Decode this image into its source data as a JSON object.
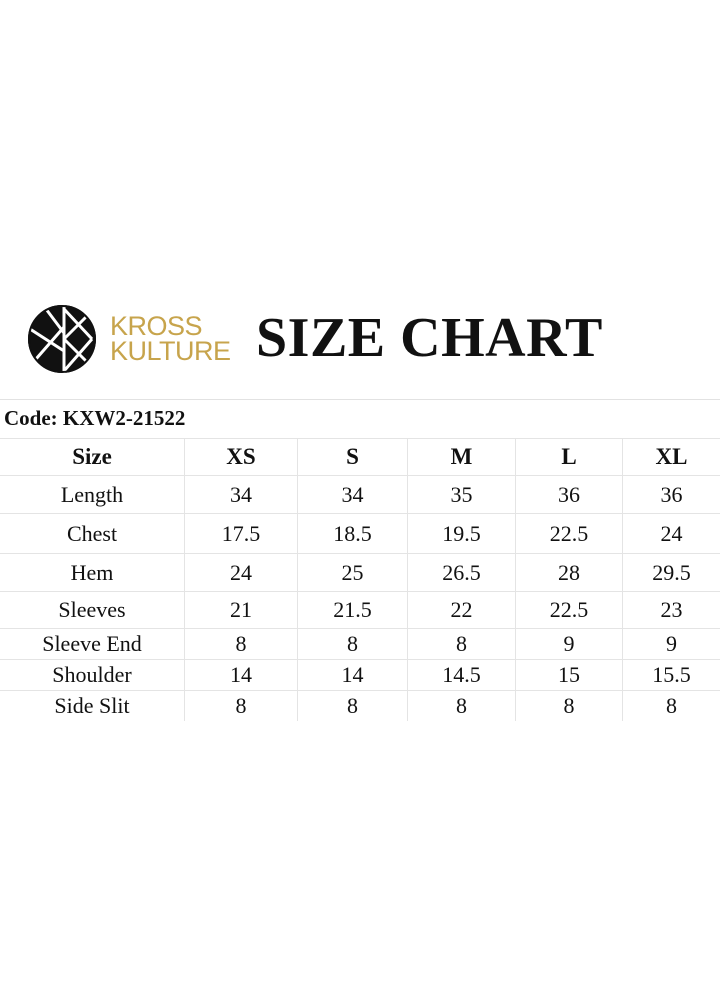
{
  "brand": {
    "line1": "KROSS",
    "line2": "KULTURE",
    "accent": "#c7a44c",
    "icon": "kross-kulture-logo-icon"
  },
  "title": "SIZE CHART",
  "code": "Code: KXW2-21522",
  "table": {
    "headers": [
      "Size",
      "XS",
      "S",
      "M",
      "L",
      "XL"
    ],
    "rows": [
      {
        "label": "Length",
        "values": [
          "34",
          "34",
          "35",
          "36",
          "36"
        ]
      },
      {
        "label": "Chest",
        "values": [
          "17.5",
          "18.5",
          "19.5",
          "22.5",
          "24"
        ]
      },
      {
        "label": "Hem",
        "values": [
          "24",
          "25",
          "26.5",
          "28",
          "29.5"
        ]
      },
      {
        "label": "Sleeves",
        "values": [
          "21",
          "21.5",
          "22",
          "22.5",
          "23"
        ]
      },
      {
        "label": "Sleeve End",
        "values": [
          "8",
          "8",
          "8",
          "9",
          "9"
        ]
      },
      {
        "label": "Shoulder",
        "values": [
          "14",
          "14",
          "14.5",
          "15",
          "15.5"
        ]
      },
      {
        "label": "Side Slit",
        "values": [
          "8",
          "8",
          "8",
          "8",
          "8"
        ]
      }
    ]
  }
}
